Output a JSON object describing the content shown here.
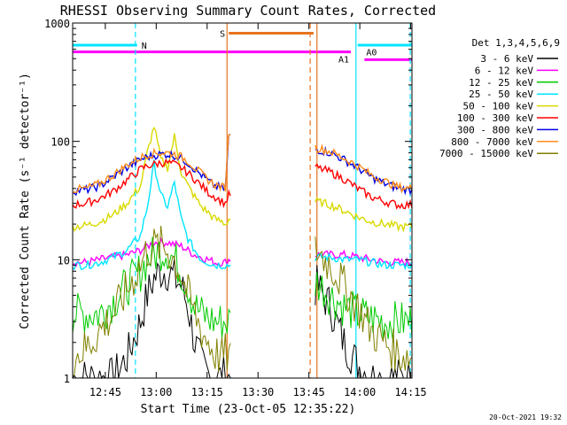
{
  "chart_data": {
    "type": "line",
    "title": "RHESSI Observing Summary Count Rates, Corrected",
    "xlabel": "Start Time (23-Oct-05 12:35:22)",
    "ylabel": "Corrected Count Rate (s⁻¹ detector⁻¹)",
    "ylog": true,
    "ylim": [
      1,
      1000
    ],
    "xlim_minutes": [
      0,
      100
    ],
    "x_ticks": [
      "12:45",
      "13:00",
      "13:15",
      "13:30",
      "13:45",
      "14:00",
      "14:15"
    ],
    "y_ticks": [
      "1",
      "10",
      "100",
      "1000"
    ],
    "legend_title": "Det 1,3,4,5,6,9",
    "legend_position": "right",
    "timestamp": "20-Oct-2021 19:32",
    "flags": [
      {
        "label": "N",
        "color": "#00e5ff",
        "level": 650,
        "segments": [
          [
            0,
            19
          ],
          [
            84,
            100
          ]
        ]
      },
      {
        "label": "S",
        "color": "#e8731e",
        "level": 820,
        "segments": [
          [
            46,
            71
          ]
        ]
      },
      {
        "label": "A1",
        "color": "#ff00ff",
        "level": 570,
        "segments": [
          [
            0,
            82
          ]
        ]
      },
      {
        "label": "A0",
        "color": "#ff00ff",
        "level": 490,
        "segments": [
          [
            86,
            100
          ]
        ]
      }
    ],
    "event_lines": [
      {
        "minute": 18.5,
        "color": "#00e5ff",
        "style": "dashed"
      },
      {
        "minute": 45.5,
        "color": "#e8731e",
        "style": "solid"
      },
      {
        "minute": 70.0,
        "color": "#e8731e",
        "style": "dashed"
      },
      {
        "minute": 72.0,
        "color": "#e8731e",
        "style": "solid"
      },
      {
        "minute": 83.5,
        "color": "#00e5ff",
        "style": "solid"
      },
      {
        "minute": 99.5,
        "color": "#00e5ff",
        "style": "dashed"
      }
    ],
    "data_gap_minutes": [
      46.5,
      71.5
    ],
    "x": [
      0,
      4,
      8,
      12,
      16,
      20,
      22,
      24,
      26,
      28,
      30,
      32,
      34,
      36,
      38,
      40,
      42,
      44,
      45,
      46,
      72,
      76,
      80,
      84,
      88,
      92,
      96,
      100
    ],
    "series": [
      {
        "name": "3 - 6 keV",
        "color": "#000000",
        "values": [
          1,
          1,
          1,
          1,
          1.5,
          3,
          5,
          7,
          8,
          8,
          7,
          6,
          4,
          2,
          1.3,
          1.1,
          1,
          1,
          1.1,
          1,
          6,
          4,
          2,
          1.3,
          1,
          1,
          1,
          1
        ]
      },
      {
        "name": "6 - 12 keV",
        "color": "#ff00ff",
        "values": [
          9.5,
          9.5,
          10,
          10.5,
          11,
          12,
          13,
          14,
          14,
          14,
          13.5,
          13,
          12,
          11,
          10.5,
          10,
          9.5,
          9.5,
          9.5,
          10,
          11,
          11,
          11,
          10.5,
          10,
          9.5,
          9.5,
          9.5
        ]
      },
      {
        "name": "12 - 25 keV",
        "color": "#00cc00",
        "values": [
          3.5,
          3.5,
          3.5,
          4.5,
          6,
          8,
          10,
          11,
          12,
          12,
          10,
          8,
          6,
          4,
          3.5,
          3.2,
          3,
          3,
          3,
          3,
          6.5,
          5,
          4,
          3.5,
          3.2,
          3,
          3,
          3
        ]
      },
      {
        "name": "25 - 50 keV",
        "color": "#00e5ff",
        "values": [
          9,
          9,
          9.5,
          10.5,
          12,
          16,
          28,
          65,
          35,
          28,
          45,
          22,
          15,
          12,
          10,
          9.5,
          9,
          9,
          9,
          9,
          10.5,
          10.5,
          10,
          10,
          9.5,
          9,
          9,
          9
        ]
      },
      {
        "name": "50 - 100 keV",
        "color": "#d9d900",
        "values": [
          19,
          19.5,
          21,
          24,
          30,
          42,
          80,
          135,
          70,
          60,
          110,
          55,
          42,
          34,
          28,
          25,
          22,
          21,
          20,
          22,
          31,
          29,
          26,
          23,
          21,
          20,
          19,
          19
        ]
      },
      {
        "name": "100 - 300 keV",
        "color": "#ff0000",
        "values": [
          29,
          30,
          33,
          38,
          47,
          58,
          62,
          64,
          66,
          66,
          64,
          60,
          54,
          48,
          42,
          37,
          34,
          31,
          30,
          35,
          60,
          55,
          48,
          40,
          34,
          31,
          29,
          29
        ]
      },
      {
        "name": "300 - 800 keV",
        "color": "#0000e6",
        "values": [
          38,
          39,
          42,
          50,
          60,
          70,
          74,
          76,
          78,
          78,
          76,
          72,
          66,
          58,
          52,
          46,
          42,
          40,
          40,
          110,
          85,
          80,
          70,
          60,
          50,
          44,
          40,
          39
        ]
      },
      {
        "name": "800 - 7000 keV",
        "color": "#ff8c1a",
        "values": [
          39,
          40,
          44,
          52,
          63,
          73,
          77,
          79,
          80,
          80,
          78,
          74,
          68,
          60,
          53,
          47,
          43,
          41,
          41,
          120,
          88,
          82,
          72,
          62,
          52,
          46,
          41,
          40
        ]
      },
      {
        "name": "7000 - 15000 keV",
        "color": "#808000",
        "values": [
          1.5,
          1.8,
          2.5,
          3.5,
          5.5,
          9,
          12,
          13,
          13,
          12,
          10,
          7.5,
          5,
          3.5,
          2.5,
          2,
          1.6,
          1.5,
          1.6,
          1.5,
          12,
          9,
          6,
          4,
          2.5,
          2,
          1.6,
          1.5
        ]
      }
    ]
  }
}
